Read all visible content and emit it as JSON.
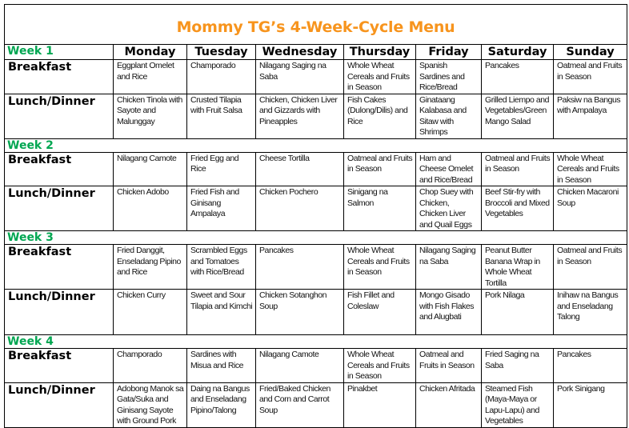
{
  "title": "Mommy TG’s 4-Week-Cycle Menu",
  "colors": {
    "title": "#f7941d",
    "week_label": "#00a651"
  },
  "days": [
    "Monday",
    "Tuesday",
    "Wednesday",
    "Thursday",
    "Friday",
    "Saturday",
    "Sunday"
  ],
  "meal_labels": {
    "breakfast": "Breakfast",
    "lunch": "Lunch/Dinner"
  },
  "weeks": [
    {
      "label": "Week 1",
      "breakfast": [
        "Eggplant Omelet and Rice",
        "Champorado",
        "Nilagang Saging na Saba",
        "Whole Wheat Cereals and Fruits in Season",
        "Spanish Sardines and Rice/Bread",
        "Pancakes",
        "Oatmeal and Fruits in Season"
      ],
      "lunch": [
        "Chicken Tinola with Sayote and Malunggay",
        "Crusted Tilapia with Fruit Salsa",
        "Chicken, Chicken Liver and Gizzards with Pineapples",
        "Fish Cakes (Dulong/Dilis) and Rice",
        "Ginataang Kalabasa and Sitaw with Shrimps",
        "Grilled Liempo and Vegetables/Green Mango Salad",
        "Paksiw na Bangus with Ampalaya"
      ]
    },
    {
      "label": "Week 2",
      "breakfast": [
        "Nilagang Camote",
        "Fried Egg and Rice",
        "Cheese Tortilla",
        "Oatmeal and Fruits in Season",
        "Ham and Cheese Omelet and Rice/Bread",
        "Oatmeal and Fruits in Season",
        "Whole Wheat Cereals and Fruits in Season"
      ],
      "lunch": [
        "Chicken Adobo",
        "Fried Fish and Ginisang Ampalaya",
        "Chicken Pochero",
        "Sinigang na Salmon",
        "Chop Suey with Chicken, Chicken Liver and Quail Eggs",
        "Beef Stir-fry with Broccoli and Mixed Vegetables",
        "Chicken Macaroni Soup"
      ]
    },
    {
      "label": "Week 3",
      "breakfast": [
        "Fried Danggit, Enseladang Pipino and Rice",
        "Scrambled Eggs and Tomatoes with Rice/Bread",
        "Pancakes",
        "Whole Wheat Cereals and Fruits in Season",
        "Nilagang Saging na Saba",
        "Peanut Butter Banana Wrap in Whole Wheat Tortilla",
        "Oatmeal and Fruits in Season"
      ],
      "lunch": [
        "Chicken Curry",
        "Sweet and Sour Tilapia and Kimchi",
        "Chicken Sotanghon Soup",
        "Fish Fillet and Coleslaw",
        "Mongo Gisado with Fish Flakes and Alugbati",
        "Pork Nilaga",
        "Inihaw na Bangus and Enseladang Talong"
      ]
    },
    {
      "label": "Week 4",
      "breakfast": [
        "Champorado",
        "Sardines with Misua and Rice",
        "Nilagang Camote",
        "Whole Wheat Cereals and Fruits in Season",
        "Oatmeal and Fruits in Season",
        "Fried Saging na Saba",
        "Pancakes"
      ],
      "lunch": [
        "Adobong Manok sa Gata/Suka and Ginisang Sayote with Ground Pork",
        "Daing na Bangus and Enseladang Pipino/Talong",
        "Fried/Baked Chicken and Corn and Carrot Soup",
        "Pinakbet",
        "Chicken Afritada",
        "Steamed Fish (Maya-Maya or Lapu-Lapu) and Vegetables",
        "Pork Sinigang"
      ]
    }
  ]
}
